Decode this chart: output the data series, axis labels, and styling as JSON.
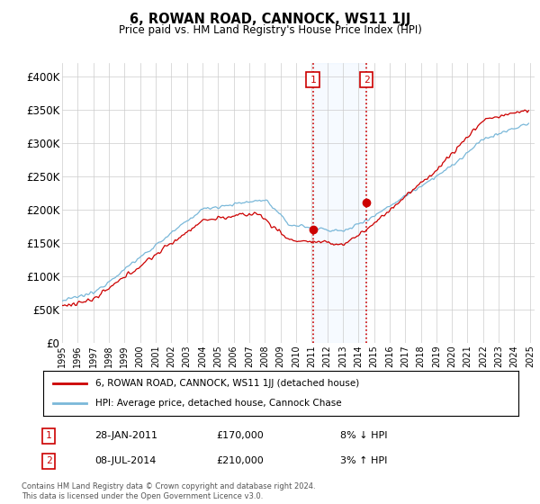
{
  "title": "6, ROWAN ROAD, CANNOCK, WS11 1JJ",
  "subtitle": "Price paid vs. HM Land Registry's House Price Index (HPI)",
  "ylim": [
    0,
    420000
  ],
  "yticks": [
    0,
    50000,
    100000,
    150000,
    200000,
    250000,
    300000,
    350000,
    400000
  ],
  "ytick_labels": [
    "£0",
    "£50K",
    "£100K",
    "£150K",
    "£200K",
    "£250K",
    "£300K",
    "£350K",
    "£400K"
  ],
  "sale1": {
    "date_num": 2011.08,
    "price": 170000,
    "label": "1",
    "pct": "8% ↓ HPI",
    "date_str": "28-JAN-2011"
  },
  "sale2": {
    "date_num": 2014.52,
    "price": 210000,
    "label": "2",
    "pct": "3% ↑ HPI",
    "date_str": "08-JUL-2014"
  },
  "hpi_color": "#7ab8d9",
  "sale_color": "#cc0000",
  "legend_label_sale": "6, ROWAN ROAD, CANNOCK, WS11 1JJ (detached house)",
  "legend_label_hpi": "HPI: Average price, detached house, Cannock Chase",
  "footnote": "Contains HM Land Registry data © Crown copyright and database right 2024.\nThis data is licensed under the Open Government Licence v3.0.",
  "box_color": "#cc0000",
  "shade_color": "#ddeeff"
}
